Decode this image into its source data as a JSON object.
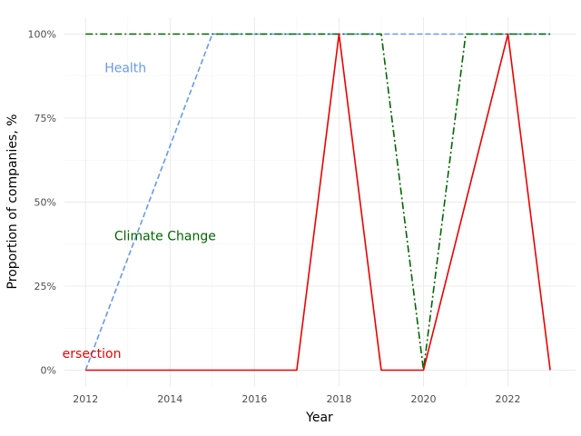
{
  "chart_data": {
    "type": "line",
    "xlabel": "Year",
    "ylabel": "Proportion of companies, %",
    "xlim": [
      2011.5,
      2023.6
    ],
    "ylim": [
      -0.05,
      1.05
    ],
    "x_ticks": [
      2012,
      2014,
      2016,
      2018,
      2020,
      2022
    ],
    "x_tick_labels": [
      "2012",
      "2014",
      "2016",
      "2018",
      "2020",
      "2022"
    ],
    "y_ticks": [
      0,
      0.25,
      0.5,
      0.75,
      1.0
    ],
    "y_tick_labels": [
      "0%",
      "25%",
      "50%",
      "75%",
      "100%"
    ],
    "grid": true,
    "series": [
      {
        "name": "Health",
        "color": "#6699ee",
        "dash": "dashed",
        "x": [
          2012,
          2013,
          2014,
          2015,
          2016,
          2017,
          2018,
          2019,
          2020,
          2021,
          2022,
          2023
        ],
        "values": [
          0,
          0.333,
          0.667,
          1,
          1,
          1,
          1,
          1,
          1,
          1,
          1,
          1
        ],
        "label_pos": [
          2012.45,
          0.9
        ]
      },
      {
        "name": "Climate Change",
        "color": "#006600",
        "dash": "dashdot",
        "x": [
          2012,
          2013,
          2014,
          2015,
          2016,
          2017,
          2018,
          2019,
          2020,
          2021,
          2022,
          2023
        ],
        "values": [
          1,
          1,
          1,
          1,
          1,
          1,
          1,
          1,
          0,
          1,
          1,
          1
        ],
        "label_pos": [
          2012.68,
          0.4
        ]
      },
      {
        "name": "ersection",
        "color": "#ee0000",
        "dash": "solid",
        "x": [
          2012,
          2013,
          2014,
          2015,
          2016,
          2017,
          2018,
          2019,
          2020,
          2021,
          2022,
          2023
        ],
        "values": [
          0,
          0,
          0,
          0,
          0,
          0,
          1,
          0,
          0,
          0.5,
          1,
          0
        ],
        "label_pos": [
          2011.45,
          0.05
        ]
      }
    ]
  }
}
